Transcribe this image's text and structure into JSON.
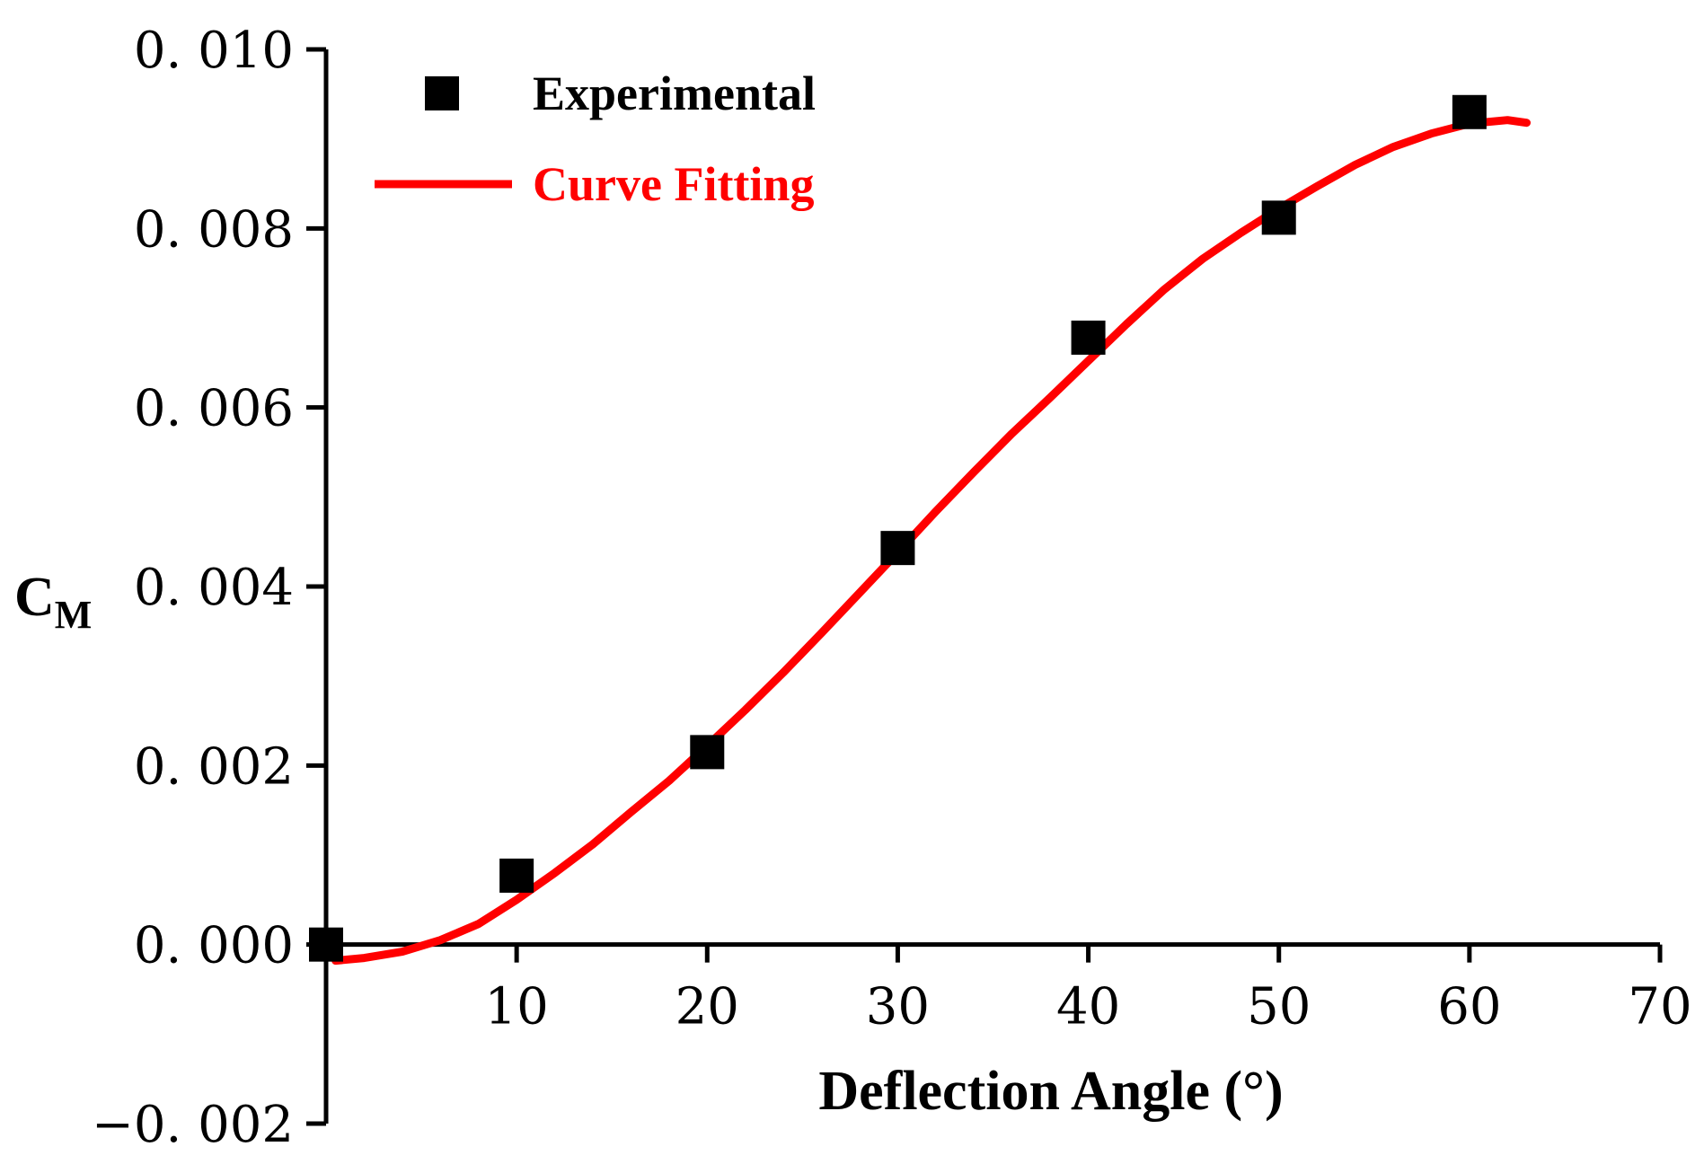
{
  "chart_data": {
    "type": "scatter",
    "title": "",
    "xlabel": "Deflection Angle (°)",
    "ylabel_main": "C",
    "ylabel_sub": "M",
    "xlim": [
      0,
      70
    ],
    "ylim": [
      -0.002,
      0.01
    ],
    "x_ticks": [
      10,
      20,
      30,
      40,
      50,
      60,
      70
    ],
    "x_tick_labels": [
      "10",
      "20",
      "30",
      "40",
      "50",
      "60",
      "70"
    ],
    "y_ticks": [
      0.01,
      0.008,
      0.006,
      0.004,
      0.002,
      0.0,
      -0.002
    ],
    "y_tick_labels": [
      "0. 010",
      "0. 008",
      "0. 006",
      "0. 004",
      "0. 002",
      "0. 000",
      "−0. 002"
    ],
    "grid": false,
    "legend_position": "top-left",
    "series": [
      {
        "name": "Experimental",
        "kind": "markers",
        "marker": "square",
        "color": "#000000",
        "x": [
          0,
          10,
          20,
          30,
          40,
          50,
          60
        ],
        "y": [
          0.0,
          0.00077,
          0.00215,
          0.00443,
          0.00678,
          0.00812,
          0.0093
        ]
      },
      {
        "name": "Curve Fitting",
        "kind": "line",
        "color": "#ff0000",
        "x": [
          0.5,
          2,
          4,
          6,
          8,
          10,
          12,
          14,
          16,
          18,
          20,
          22,
          24,
          26,
          28,
          30,
          32,
          34,
          36,
          38,
          40,
          42,
          44,
          46,
          48,
          50,
          52,
          54,
          56,
          58,
          60,
          62,
          63
        ],
        "y": [
          -0.00018,
          -0.00015,
          -8e-05,
          5e-05,
          0.00023,
          0.0005,
          0.0008,
          0.00112,
          0.00148,
          0.00183,
          0.00222,
          0.00262,
          0.00304,
          0.00348,
          0.00393,
          0.00438,
          0.00484,
          0.00528,
          0.00571,
          0.00611,
          0.00652,
          0.00693,
          0.00732,
          0.00766,
          0.00795,
          0.00822,
          0.00847,
          0.00871,
          0.00891,
          0.00906,
          0.00917,
          0.00921,
          0.00918
        ]
      }
    ]
  }
}
